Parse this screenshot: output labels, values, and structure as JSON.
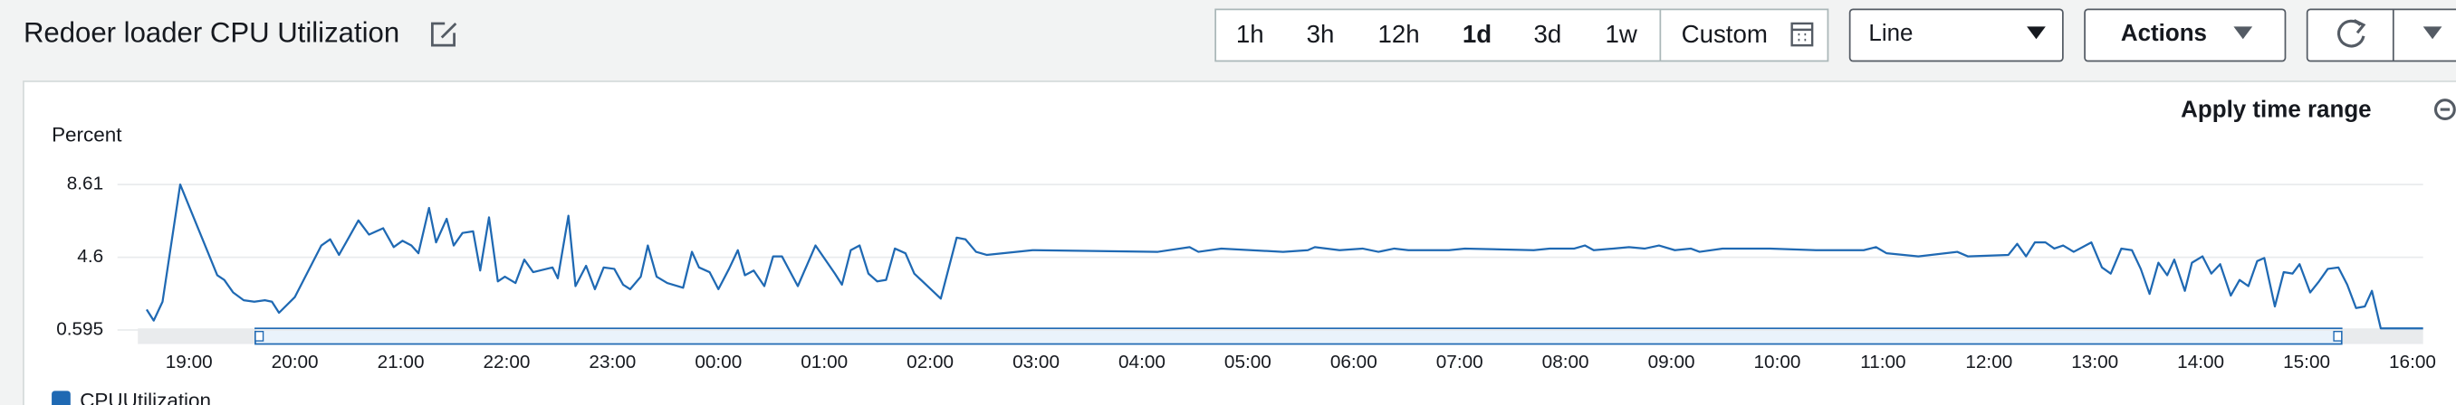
{
  "header": {
    "title": "Redoer loader CPU Utilization",
    "time_ranges": [
      "1h",
      "3h",
      "12h",
      "1d",
      "3d",
      "1w",
      "Custom"
    ],
    "selected_range": "1d",
    "chart_style": "Line",
    "actions": "Actions"
  },
  "apply_time_range": "Apply time range",
  "chart_data": {
    "type": "line",
    "y_label": "Percent",
    "x": [
      "18:36",
      "18:40",
      "18:45",
      "18:55",
      "19:16",
      "19:20",
      "19:25",
      "19:31",
      "19:37",
      "19:43",
      "19:47",
      "19:51",
      "20:00",
      "20:15",
      "20:20",
      "20:25",
      "20:36",
      "20:42",
      "20:50",
      "20:56",
      "21:01",
      "21:06",
      "21:10",
      "21:16",
      "21:20",
      "21:26",
      "21:30",
      "21:35",
      "21:41",
      "21:45",
      "21:50",
      "21:55",
      "21:59",
      "22:05",
      "22:10",
      "22:15",
      "22:26",
      "22:29",
      "22:35",
      "22:39",
      "22:45",
      "22:50",
      "22:55",
      "23:01",
      "23:06",
      "23:10",
      "23:16",
      "23:20",
      "23:25",
      "23:31",
      "23:40",
      "23:45",
      "23:49",
      "23:55",
      "00:00",
      "00:06",
      "00:11",
      "00:15",
      "00:20",
      "00:26",
      "00:31",
      "00:36",
      "00:45",
      "00:55",
      "01:06",
      "01:10",
      "01:15",
      "01:20",
      "01:25",
      "01:30",
      "01:35",
      "01:40",
      "01:46",
      "01:51",
      "02:06",
      "02:15",
      "02:20",
      "02:26",
      "02:32",
      "02:58",
      "04:09",
      "04:27",
      "04:32",
      "04:45",
      "05:20",
      "05:34",
      "05:38",
      "05:52",
      "06:05",
      "06:14",
      "06:23",
      "06:31",
      "06:54",
      "07:03",
      "07:42",
      "07:51",
      "08:05",
      "08:11",
      "08:16",
      "08:27",
      "08:36",
      "08:45",
      "08:53",
      "09:02",
      "09:11",
      "09:16",
      "09:29",
      "09:56",
      "10:22",
      "10:49",
      "10:56",
      "11:02",
      "11:20",
      "11:42",
      "11:48",
      "12:11",
      "12:16",
      "12:21",
      "12:26",
      "12:32",
      "12:37",
      "12:42",
      "12:48",
      "12:53",
      "12:58",
      "13:04",
      "13:09",
      "13:15",
      "13:21",
      "13:26",
      "13:31",
      "13:36",
      "13:41",
      "13:45",
      "13:51",
      "13:55",
      "14:01",
      "14:06",
      "14:11",
      "14:17",
      "14:22",
      "14:27",
      "14:32",
      "14:36",
      "14:42",
      "14:47",
      "14:52",
      "14:56",
      "15:02",
      "15:07",
      "15:12",
      "15:18",
      "15:23",
      "15:28",
      "15:33",
      "15:37",
      "15:42",
      "16:06"
    ],
    "series": [
      {
        "name": "CPUUtilization",
        "color": "#1f69b3",
        "values": [
          1.72,
          1.11,
          2.15,
          8.61,
          3.61,
          3.35,
          2.66,
          2.23,
          2.15,
          2.23,
          2.15,
          1.54,
          2.41,
          5.25,
          5.59,
          4.73,
          6.63,
          5.85,
          6.2,
          5.16,
          5.51,
          5.25,
          4.82,
          7.32,
          5.42,
          6.72,
          5.25,
          5.94,
          6.03,
          3.87,
          6.8,
          3.27,
          3.53,
          3.18,
          4.47,
          3.78,
          4.04,
          3.44,
          6.89,
          3.01,
          4.13,
          2.84,
          4.04,
          3.96,
          3.09,
          2.84,
          3.53,
          5.25,
          3.53,
          3.18,
          2.92,
          4.9,
          4.04,
          3.78,
          2.84,
          3.96,
          4.99,
          3.61,
          3.87,
          3.01,
          4.65,
          4.65,
          3.01,
          5.25,
          3.7,
          3.09,
          4.99,
          5.25,
          3.7,
          3.27,
          3.35,
          5.08,
          4.82,
          3.7,
          2.32,
          5.68,
          5.59,
          4.9,
          4.73,
          4.99,
          4.9,
          5.16,
          4.9,
          5.08,
          4.9,
          4.99,
          5.16,
          4.99,
          5.08,
          4.9,
          5.08,
          4.99,
          4.99,
          5.08,
          4.99,
          5.08,
          5.08,
          5.25,
          4.99,
          5.08,
          5.16,
          5.08,
          5.25,
          4.99,
          5.08,
          4.9,
          5.08,
          5.08,
          4.99,
          4.99,
          5.16,
          4.82,
          4.65,
          4.9,
          4.65,
          4.73,
          5.34,
          4.65,
          5.42,
          5.42,
          5.08,
          5.25,
          4.9,
          5.16,
          5.42,
          4.04,
          3.7,
          5.08,
          4.99,
          3.96,
          2.58,
          4.3,
          3.61,
          4.47,
          2.75,
          4.3,
          4.65,
          3.7,
          4.22,
          2.49,
          3.35,
          3.01,
          4.39,
          4.56,
          1.89,
          3.78,
          3.7,
          4.22,
          2.66,
          3.27,
          3.96,
          4.04,
          3.09,
          1.8,
          1.89,
          2.75,
          0.68,
          0.68
        ]
      }
    ],
    "xlim": [
      "18:31",
      "16:06"
    ],
    "xticks": [
      "19:00",
      "20:00",
      "21:00",
      "22:00",
      "23:00",
      "00:00",
      "01:00",
      "02:00",
      "03:00",
      "04:00",
      "05:00",
      "06:00",
      "07:00",
      "08:00",
      "09:00",
      "10:00",
      "11:00",
      "12:00",
      "13:00",
      "14:00",
      "15:00",
      "16:00"
    ],
    "ylim": [
      0.595,
      8.61
    ],
    "yticks": [
      0.595,
      4.6,
      8.61
    ],
    "grid": true
  }
}
